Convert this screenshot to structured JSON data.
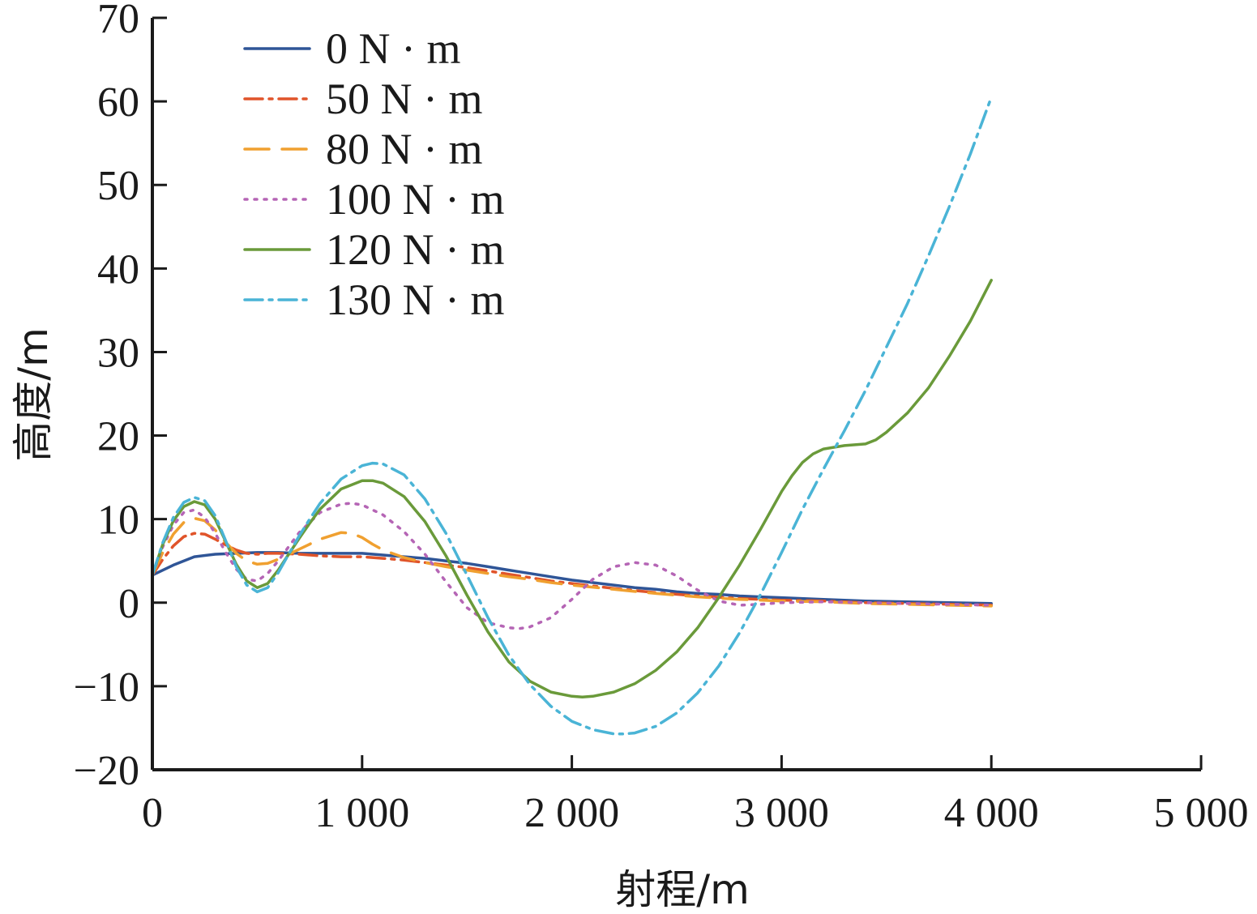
{
  "chart_data": {
    "type": "line",
    "title": "",
    "xlabel": "射程/m",
    "ylabel": "高度/m",
    "xlim": [
      0,
      5000
    ],
    "ylim": [
      -20,
      70
    ],
    "xticks": [
      0,
      1000,
      2000,
      3000,
      4000,
      5000
    ],
    "xtick_labels": [
      "0",
      "1 000",
      "2 000",
      "3 000",
      "4 000",
      "5 000"
    ],
    "yticks": [
      -20,
      -10,
      0,
      10,
      20,
      30,
      40,
      50,
      60,
      70
    ],
    "ytick_labels": [
      "−20",
      "−10",
      "0",
      "10",
      "20",
      "30",
      "40",
      "50",
      "60",
      "70"
    ],
    "grid": false,
    "legend_position": "top-left",
    "series": [
      {
        "name": "0 N · m",
        "color": "#2f5597",
        "dash": "solid",
        "x": [
          0,
          100,
          200,
          300,
          400,
          500,
          600,
          700,
          800,
          900,
          1000,
          1100,
          1200,
          1300,
          1400,
          1500,
          1600,
          1700,
          1800,
          1900,
          2000,
          2100,
          2200,
          2300,
          2400,
          2500,
          2600,
          2700,
          2800,
          2900,
          3000,
          3200,
          3400,
          3600,
          3800,
          4000
        ],
        "y": [
          3.3,
          4.5,
          5.5,
          5.8,
          5.9,
          6.0,
          6.0,
          5.9,
          5.9,
          5.9,
          5.9,
          5.7,
          5.5,
          5.3,
          5.0,
          4.7,
          4.3,
          3.9,
          3.5,
          3.1,
          2.7,
          2.4,
          2.1,
          1.8,
          1.6,
          1.3,
          1.1,
          1.0,
          0.8,
          0.7,
          0.6,
          0.4,
          0.2,
          0.1,
          0.0,
          -0.1
        ]
      },
      {
        "name": "50 N · m",
        "color": "#e0542a",
        "dash": "dashdot",
        "x": [
          0,
          50,
          100,
          150,
          200,
          250,
          300,
          350,
          400,
          450,
          500,
          550,
          600,
          700,
          800,
          900,
          1000,
          1100,
          1200,
          1300,
          1400,
          1500,
          1600,
          1700,
          1800,
          1900,
          2000,
          2200,
          2400,
          2600,
          2800,
          3000,
          3200,
          3400,
          3600,
          3800,
          4000
        ],
        "y": [
          3.3,
          5.2,
          6.8,
          7.9,
          8.3,
          8.2,
          7.6,
          6.9,
          6.3,
          5.9,
          5.8,
          5.9,
          5.9,
          5.8,
          5.6,
          5.5,
          5.5,
          5.3,
          5.1,
          4.8,
          4.5,
          4.2,
          3.8,
          3.4,
          3.0,
          2.6,
          2.3,
          1.7,
          1.2,
          0.8,
          0.5,
          0.3,
          0.2,
          0.0,
          -0.1,
          -0.2,
          -0.3
        ]
      },
      {
        "name": "80 N · m",
        "color": "#f0a030",
        "dash": "dashed",
        "x": [
          0,
          50,
          100,
          150,
          200,
          250,
          300,
          350,
          400,
          450,
          500,
          550,
          600,
          650,
          700,
          800,
          900,
          950,
          1000,
          1050,
          1100,
          1200,
          1300,
          1400,
          1500,
          1600,
          1700,
          1800,
          1900,
          2000,
          2200,
          2400,
          2600,
          2800,
          3000,
          3200,
          3400,
          3600,
          3800,
          4000
        ],
        "y": [
          3.3,
          6.0,
          8.2,
          9.6,
          10.1,
          9.8,
          8.7,
          7.2,
          5.9,
          5.0,
          4.6,
          4.7,
          5.2,
          5.8,
          6.4,
          7.6,
          8.4,
          8.3,
          7.8,
          7.0,
          6.3,
          5.4,
          4.8,
          4.3,
          3.9,
          3.5,
          3.1,
          2.8,
          2.4,
          2.1,
          1.6,
          1.1,
          0.7,
          0.4,
          0.2,
          0.1,
          -0.1,
          -0.2,
          -0.3,
          -0.4
        ]
      },
      {
        "name": "100 N · m",
        "color": "#b565b5",
        "dash": "dotted",
        "x": [
          0,
          50,
          100,
          150,
          200,
          250,
          300,
          350,
          400,
          450,
          500,
          550,
          600,
          650,
          700,
          800,
          900,
          950,
          1000,
          1100,
          1200,
          1300,
          1400,
          1500,
          1600,
          1700,
          1750,
          1800,
          1900,
          2000,
          2100,
          2200,
          2300,
          2400,
          2500,
          2600,
          2700,
          2800,
          2900,
          3000,
          3200,
          3400,
          3600,
          3800,
          4000
        ],
        "y": [
          3.3,
          6.7,
          9.3,
          10.8,
          11.1,
          10.2,
          8.3,
          6.0,
          4.0,
          2.8,
          2.6,
          3.5,
          5.0,
          6.7,
          8.4,
          10.8,
          11.8,
          11.9,
          11.7,
          10.5,
          8.5,
          5.8,
          2.5,
          -0.6,
          -2.4,
          -3.0,
          -3.1,
          -2.9,
          -1.8,
          0.4,
          2.8,
          4.3,
          4.8,
          4.5,
          3.2,
          1.5,
          0.2,
          -0.3,
          -0.2,
          0.0,
          0.1,
          0.0,
          -0.1,
          -0.2,
          -0.3
        ]
      },
      {
        "name": "120 N · m",
        "color": "#6a9a3a",
        "dash": "solid",
        "x": [
          0,
          50,
          100,
          150,
          200,
          250,
          300,
          350,
          400,
          450,
          500,
          550,
          600,
          650,
          700,
          750,
          800,
          900,
          1000,
          1050,
          1100,
          1200,
          1300,
          1400,
          1500,
          1600,
          1700,
          1800,
          1900,
          2000,
          2050,
          2100,
          2200,
          2300,
          2400,
          2500,
          2600,
          2700,
          2800,
          2900,
          3000,
          3050,
          3100,
          3150,
          3200,
          3250,
          3300,
          3350,
          3400,
          3450,
          3500,
          3600,
          3700,
          3800,
          3900,
          4000
        ],
        "y": [
          3.3,
          7.0,
          9.8,
          11.5,
          12.1,
          11.7,
          10.0,
          7.3,
          4.6,
          2.6,
          1.8,
          2.3,
          3.9,
          5.8,
          7.7,
          9.5,
          11.2,
          13.6,
          14.6,
          14.6,
          14.3,
          12.7,
          9.7,
          5.6,
          0.9,
          -3.5,
          -7.1,
          -9.4,
          -10.7,
          -11.2,
          -11.3,
          -11.2,
          -10.7,
          -9.7,
          -8.1,
          -5.9,
          -3.0,
          0.6,
          4.5,
          8.8,
          13.3,
          15.2,
          16.8,
          17.8,
          18.4,
          18.6,
          18.8,
          18.9,
          19.0,
          19.5,
          20.4,
          22.7,
          25.7,
          29.5,
          33.7,
          38.6
        ]
      },
      {
        "name": "130 N · m",
        "color": "#4ab4d6",
        "dash": "dashdot",
        "x": [
          0,
          50,
          100,
          150,
          200,
          250,
          300,
          350,
          400,
          450,
          500,
          550,
          600,
          650,
          700,
          750,
          800,
          900,
          1000,
          1050,
          1100,
          1200,
          1300,
          1400,
          1500,
          1600,
          1700,
          1800,
          1900,
          2000,
          2100,
          2200,
          2250,
          2300,
          2400,
          2500,
          2600,
          2700,
          2800,
          2900,
          3000,
          3100,
          3200,
          3300,
          3400,
          3500,
          3600,
          3700,
          3800,
          3900,
          4000
        ],
        "y": [
          3.3,
          7.2,
          10.2,
          12.0,
          12.6,
          12.2,
          10.4,
          7.4,
          4.3,
          2.1,
          1.3,
          1.8,
          3.6,
          5.8,
          8.0,
          10.0,
          11.9,
          14.8,
          16.4,
          16.7,
          16.6,
          15.3,
          12.4,
          8.3,
          3.3,
          -1.8,
          -6.3,
          -9.8,
          -12.4,
          -14.2,
          -15.2,
          -15.7,
          -15.7,
          -15.6,
          -14.8,
          -13.2,
          -10.8,
          -7.6,
          -3.6,
          1.0,
          6.0,
          11.2,
          16.0,
          20.6,
          25.4,
          30.6,
          35.8,
          41.5,
          47.4,
          53.7,
          60.5
        ]
      }
    ]
  }
}
